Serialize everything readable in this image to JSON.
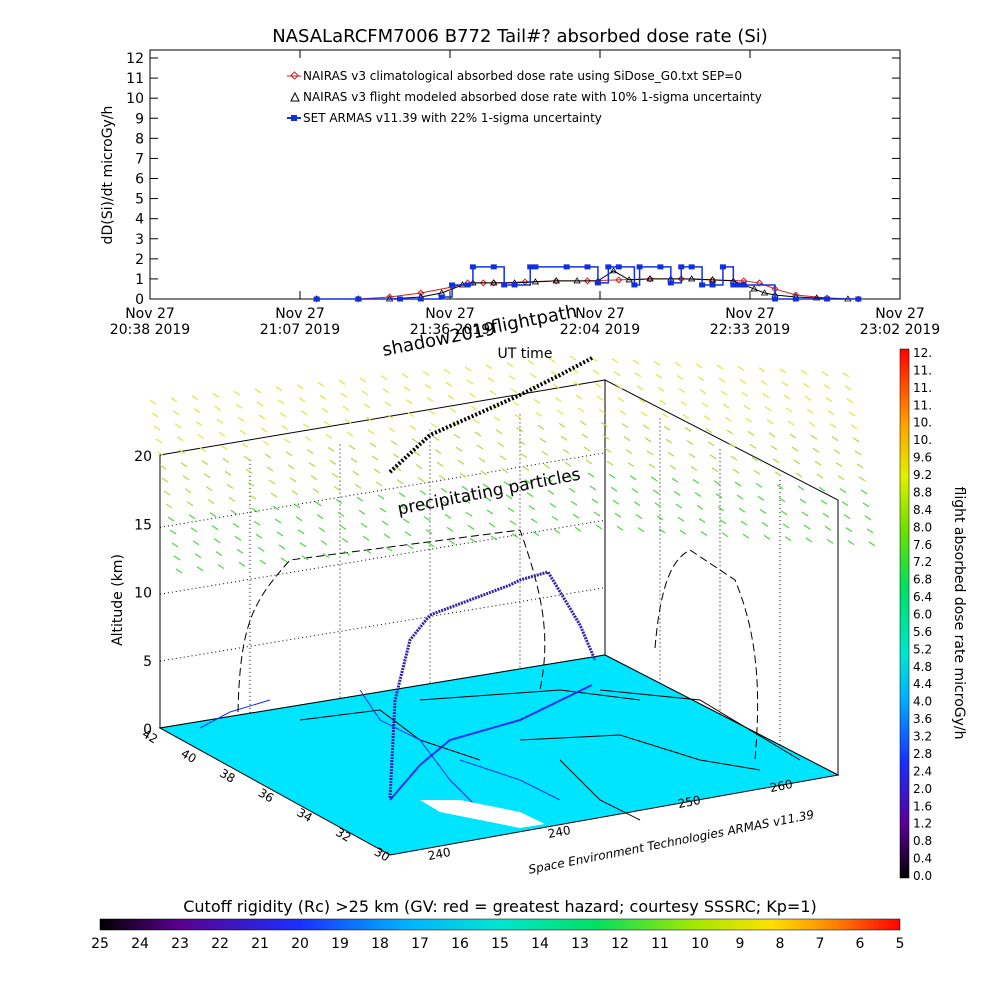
{
  "title": "NASALaRCFM7006  B772 Tail#? absorbed dose rate (Si)",
  "top_panel": {
    "ylabel": "dD(Si)/dt microGy/h",
    "xlabel": "UT time",
    "ytick_labels": [
      "0",
      "1",
      "2",
      "3",
      "4",
      "5",
      "6",
      "7",
      "8",
      "9",
      "10",
      "11",
      "12"
    ],
    "xtick_labels": [
      {
        "line1": "Nov 27",
        "line2": "20:38 2019"
      },
      {
        "line1": "Nov 27",
        "line2": "21:07 2019"
      },
      {
        "line1": "Nov 27",
        "line2": "21:36 2019"
      },
      {
        "line1": "Nov 27",
        "line2": "22:04 2019"
      },
      {
        "line1": "Nov 27",
        "line2": "22:33 2019"
      },
      {
        "line1": "Nov 27",
        "line2": "23:02 2019"
      }
    ],
    "legend": [
      {
        "label": "NAIRAS v3 climatological absorbed dose rate using SiDose_G0.txt SEP=0",
        "color": "#d02020",
        "marker": "diamond"
      },
      {
        "label": "NAIRAS v3 flight modeled absorbed dose rate with 10% 1-sigma uncertainty",
        "color": "#000000",
        "marker": "triangle"
      },
      {
        "label": "SET ARMAS v11.39 with 22% 1-sigma uncertainty",
        "color": "#1030e0",
        "marker": "square"
      }
    ]
  },
  "chart_data": [
    {
      "type": "line",
      "title": "NASALaRCFM7006  B772 Tail#? absorbed dose rate (Si)",
      "xlabel": "UT time",
      "ylabel": "dD(Si)/dt microGy/h",
      "x_unit": "minutes after Nov 27 20:38 2019 UT",
      "xlim": [
        0,
        144
      ],
      "ylim": [
        0,
        12
      ],
      "grid": false,
      "legend_position": "top-center",
      "series": [
        {
          "name": "NAIRAS v3 climatological absorbed dose rate using SiDose_G0.txt SEP=0",
          "x": [
            32,
            40,
            46,
            52,
            58,
            61,
            64,
            66,
            72,
            78,
            84,
            90,
            96,
            102,
            108,
            114,
            117,
            120,
            124,
            130,
            136
          ],
          "y": [
            0,
            0,
            0.1,
            0.3,
            0.6,
            0.8,
            0.8,
            0.8,
            0.85,
            0.9,
            0.9,
            0.95,
            1.0,
            1.0,
            0.95,
            0.9,
            0.8,
            0.5,
            0.2,
            0.05,
            0
          ]
        },
        {
          "name": "NAIRAS v3 flight modeled absorbed dose rate with 10% 1-sigma uncertainty",
          "x": [
            32,
            40,
            46,
            52,
            56,
            60,
            62,
            66,
            70,
            74,
            78,
            82,
            86,
            89,
            92,
            96,
            100,
            104,
            108,
            112,
            114,
            116,
            118,
            120,
            124,
            128,
            134
          ],
          "y": [
            0,
            0,
            0,
            0.1,
            0.3,
            0.7,
            0.8,
            0.8,
            0.8,
            0.85,
            0.9,
            0.9,
            0.9,
            1.4,
            0.95,
            1.0,
            1.0,
            1.0,
            0.95,
            0.9,
            0.7,
            0.5,
            0.3,
            0.2,
            0.1,
            0.05,
            0
          ]
        },
        {
          "name": "SET ARMAS v11.39 with 22% 1-sigma uncertainty",
          "x": [
            32,
            40,
            48,
            52,
            56,
            58,
            61,
            62,
            66,
            68,
            70,
            73,
            74,
            80,
            84,
            86,
            88,
            90,
            93,
            94,
            98,
            100,
            102,
            104,
            106,
            108,
            110,
            112,
            113,
            114,
            120,
            124,
            130,
            136
          ],
          "y": [
            0,
            0,
            0,
            0,
            0.1,
            0.7,
            0.7,
            1.6,
            1.6,
            0.7,
            0.7,
            1.6,
            1.6,
            1.6,
            1.6,
            0.8,
            1.6,
            1.6,
            0.7,
            1.6,
            1.6,
            0.8,
            1.6,
            1.6,
            0.7,
            0.7,
            1.6,
            0.7,
            0.7,
            0.7,
            0,
            0,
            0,
            0
          ]
        }
      ]
    },
    {
      "type": "scatter",
      "title": "",
      "zlabel": "Altitude (km)",
      "z_ticks": [
        "0",
        "5",
        "10",
        "15",
        "20"
      ],
      "lat_ticks": [
        "42",
        "40",
        "38",
        "36",
        "34",
        "32",
        "30"
      ],
      "lon_ticks": [
        "240",
        "240",
        "250",
        "260"
      ],
      "colorbar_label": "flight absorbed dose rate microGy/h",
      "colorbar_ticks": [
        "0.0",
        "0.4",
        "0.8",
        "1.2",
        "1.6",
        "2.0",
        "2.4",
        "2.8",
        "3.2",
        "3.6",
        "4.0",
        "4.4",
        "4.8",
        "5.2",
        "5.6",
        "6.0",
        "6.4",
        "6.8",
        "7.2",
        "7.6",
        "8.0",
        "8.4",
        "8.8",
        "9.2",
        "9.6",
        "10.",
        "10.",
        "11.",
        "11.",
        "11.",
        "12."
      ],
      "bottom_colorbar_label": "Cutoff rigidity (Rc) >25 km (GV: red = greatest hazard; courtesy SSSRC; Kp=1)",
      "bottom_colorbar_ticks": [
        "25",
        "24",
        "23",
        "22",
        "21",
        "20",
        "19",
        "18",
        "17",
        "16",
        "15",
        "14",
        "13",
        "12",
        "11",
        "10",
        "9",
        "8",
        "7",
        "6",
        "5"
      ]
    }
  ],
  "annotations": {
    "shadow": "shadow2019",
    "flightpath": "flightpath",
    "precip": "precipitating particles",
    "credit": "Space Environment Technologies ARMAS v11.39"
  },
  "colors": {
    "climatological": "#d02020",
    "modeled": "#000000",
    "armas": "#1030e0",
    "ground": "#00e5ff"
  }
}
